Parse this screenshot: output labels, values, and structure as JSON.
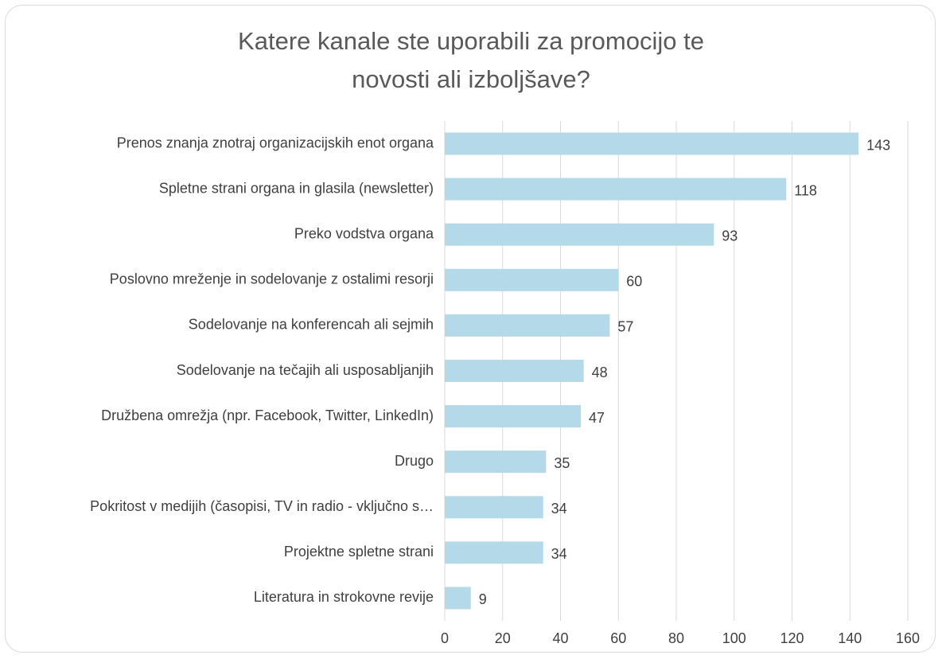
{
  "chart_data": {
    "type": "barh",
    "title": "Katere kanale ste uporabili za promocijo te novosti ali izboljšave?",
    "categories": [
      "Prenos znanja znotraj organizacijskih enot organa",
      "Spletne strani organa in glasila (newsletter)",
      "Preko vodstva organa",
      "Poslovno mreženje in sodelovanje z ostalimi resorji",
      "Sodelovanje na konferencah ali sejmih",
      "Sodelovanje na tečajih ali usposabljanjih",
      "Družbena omrežja (npr. Facebook, Twitter, LinkedIn)",
      "Drugo",
      "Pokritost v medijih (časopisi, TV in radio - vključno s…",
      "Projektne spletne strani",
      "Literatura in strokovne revije"
    ],
    "values": [
      143,
      118,
      93,
      60,
      57,
      48,
      47,
      35,
      34,
      34,
      9
    ],
    "color": "#b4d9e8",
    "xlim": [
      0,
      160
    ],
    "xticks": [
      0,
      20,
      40,
      60,
      80,
      100,
      120,
      140,
      160
    ],
    "grid": true
  }
}
